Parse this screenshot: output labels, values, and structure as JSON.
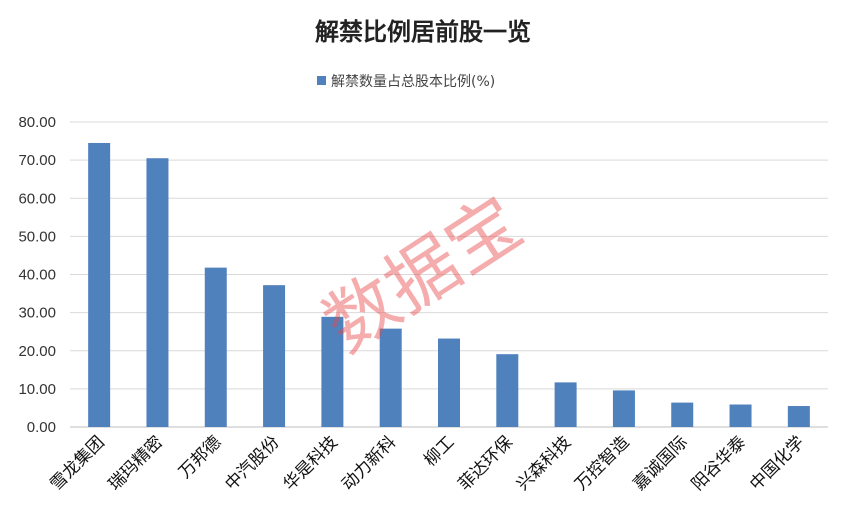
{
  "chart_data": {
    "type": "bar",
    "title": "解禁比例居前股一览",
    "series": [
      {
        "name": "解禁数量占总股本比例(%)",
        "color": "#4f81bd",
        "values": [
          74.5,
          70.5,
          41.8,
          37.2,
          28.9,
          25.8,
          23.2,
          19.1,
          11.7,
          9.6,
          6.4,
          5.9,
          5.5
        ]
      }
    ],
    "categories": [
      "雪龙集团",
      "瑞玛精密",
      "万邦德",
      "中汽股份",
      "华是科技",
      "动力新科",
      "柳工",
      "菲达环保",
      "兴森科技",
      "万控智造",
      "嘉诚国际",
      "阳谷华泰",
      "中国化学"
    ],
    "yticks": [
      "0.00",
      "10.00",
      "20.00",
      "30.00",
      "40.00",
      "50.00",
      "60.00",
      "70.00",
      "80.00"
    ],
    "ylim": [
      0,
      80
    ],
    "grid": true,
    "legend_position": "top",
    "xlabel": "",
    "ylabel": ""
  },
  "watermark": "数据宝"
}
